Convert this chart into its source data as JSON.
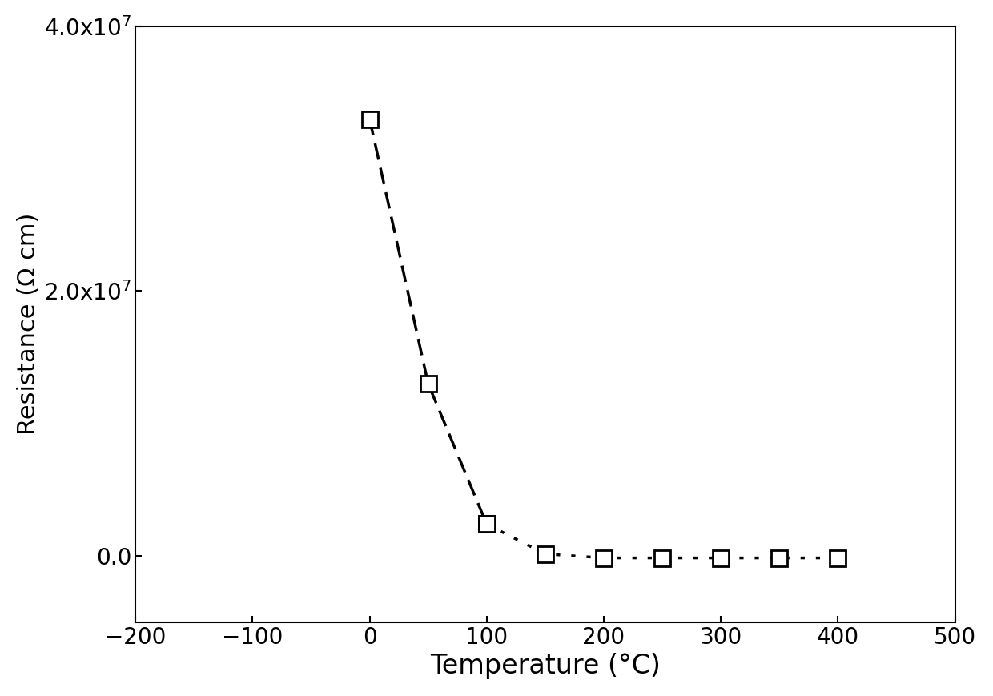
{
  "x": [
    0,
    50,
    100,
    150,
    200,
    250,
    300,
    350,
    400
  ],
  "y": [
    33000000.0,
    13000000.0,
    2400000.0,
    150000.0,
    -150000.0,
    -150000.0,
    -150000.0,
    -150000.0,
    -150000.0
  ],
  "xlabel": "Temperature (°C)",
  "ylabel": "Resistance (Ω cm)",
  "xlim": [
    -200,
    500
  ],
  "ylim": [
    -5000000.0,
    40000000.0
  ],
  "xticks": [
    -200,
    -100,
    0,
    100,
    200,
    300,
    400,
    500
  ],
  "yticks": [
    0.0,
    20000000.0,
    40000000.0
  ],
  "ytick_labels": [
    "0.0",
    "2.0x10$^7$",
    "4.0x10$^7$"
  ],
  "line_color": "#000000",
  "marker": "s",
  "markersize": 15,
  "markeredgewidth": 2.0,
  "linewidth": 2.5,
  "background_color": "#ffffff",
  "xlabel_fontsize": 24,
  "ylabel_fontsize": 22,
  "tick_fontsize": 20,
  "segment1_end": 3,
  "segment2_start": 2
}
